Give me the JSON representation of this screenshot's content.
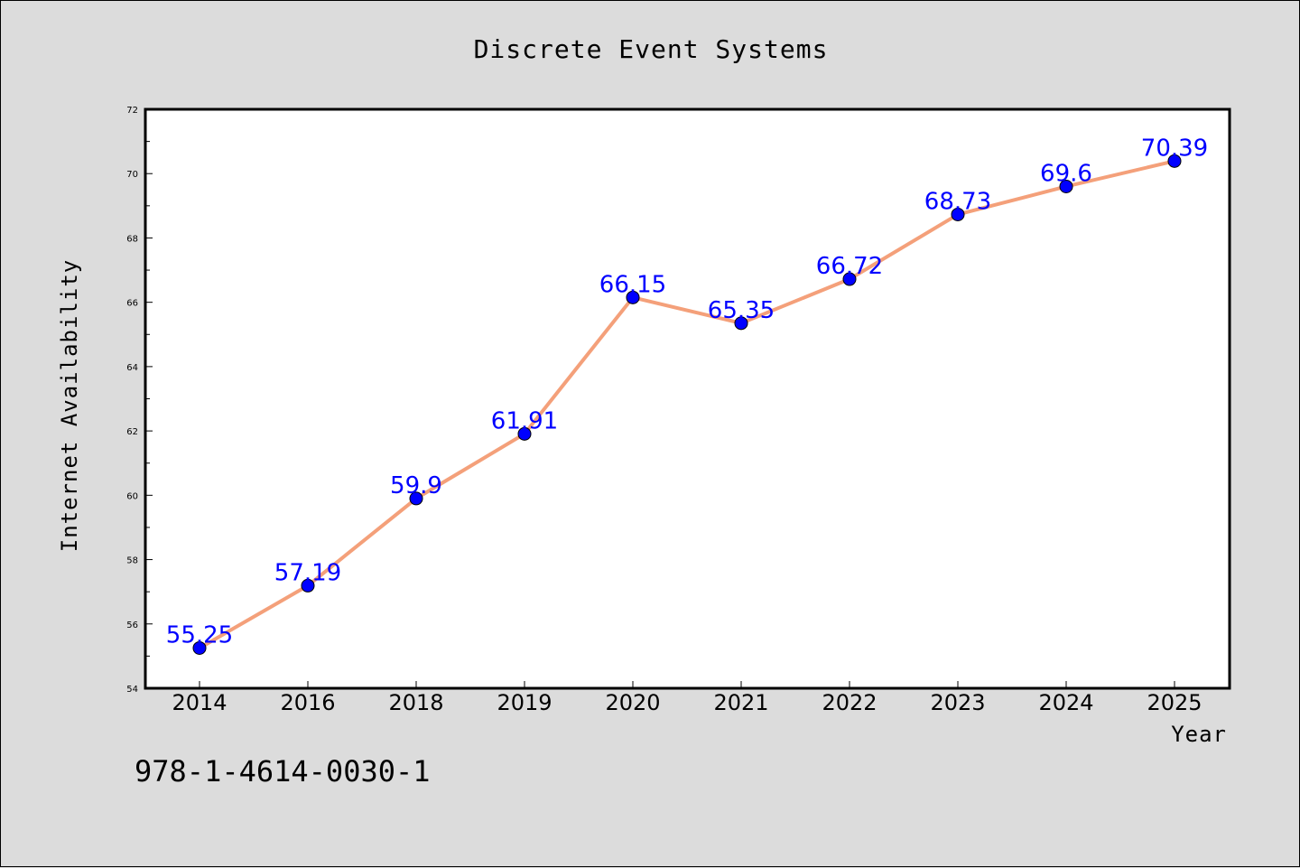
{
  "footnote": "978-1-4614-0030-1",
  "colors": {
    "background": "#dcdcdc",
    "plot_background": "#ffffff",
    "line": "#f4a07a",
    "marker": "#0000ff",
    "data_label": "#0000ff"
  },
  "chart_data": {
    "type": "line",
    "title": "Discrete Event Systems",
    "xlabel": "Year",
    "ylabel": "Internet Availability",
    "categories": [
      "2014",
      "2016",
      "2018",
      "2019",
      "2020",
      "2021",
      "2022",
      "2023",
      "2024",
      "2025"
    ],
    "series": [
      {
        "values": [
          55.25,
          57.19,
          59.9,
          61.91,
          66.15,
          65.35,
          66.72,
          68.73,
          69.6,
          70.39
        ],
        "marker": "circle",
        "data_labels": [
          "55.25",
          "57.19",
          "59.9",
          "61.91",
          "66.15",
          "65.35",
          "66.72",
          "68.73",
          "69.6",
          "70.39"
        ]
      }
    ],
    "ylim": [
      54,
      72
    ],
    "yticks": [
      "54",
      "56",
      "58",
      "60",
      "62",
      "64",
      "66",
      "68",
      "70",
      "72"
    ],
    "grid": false,
    "legend": "none"
  }
}
